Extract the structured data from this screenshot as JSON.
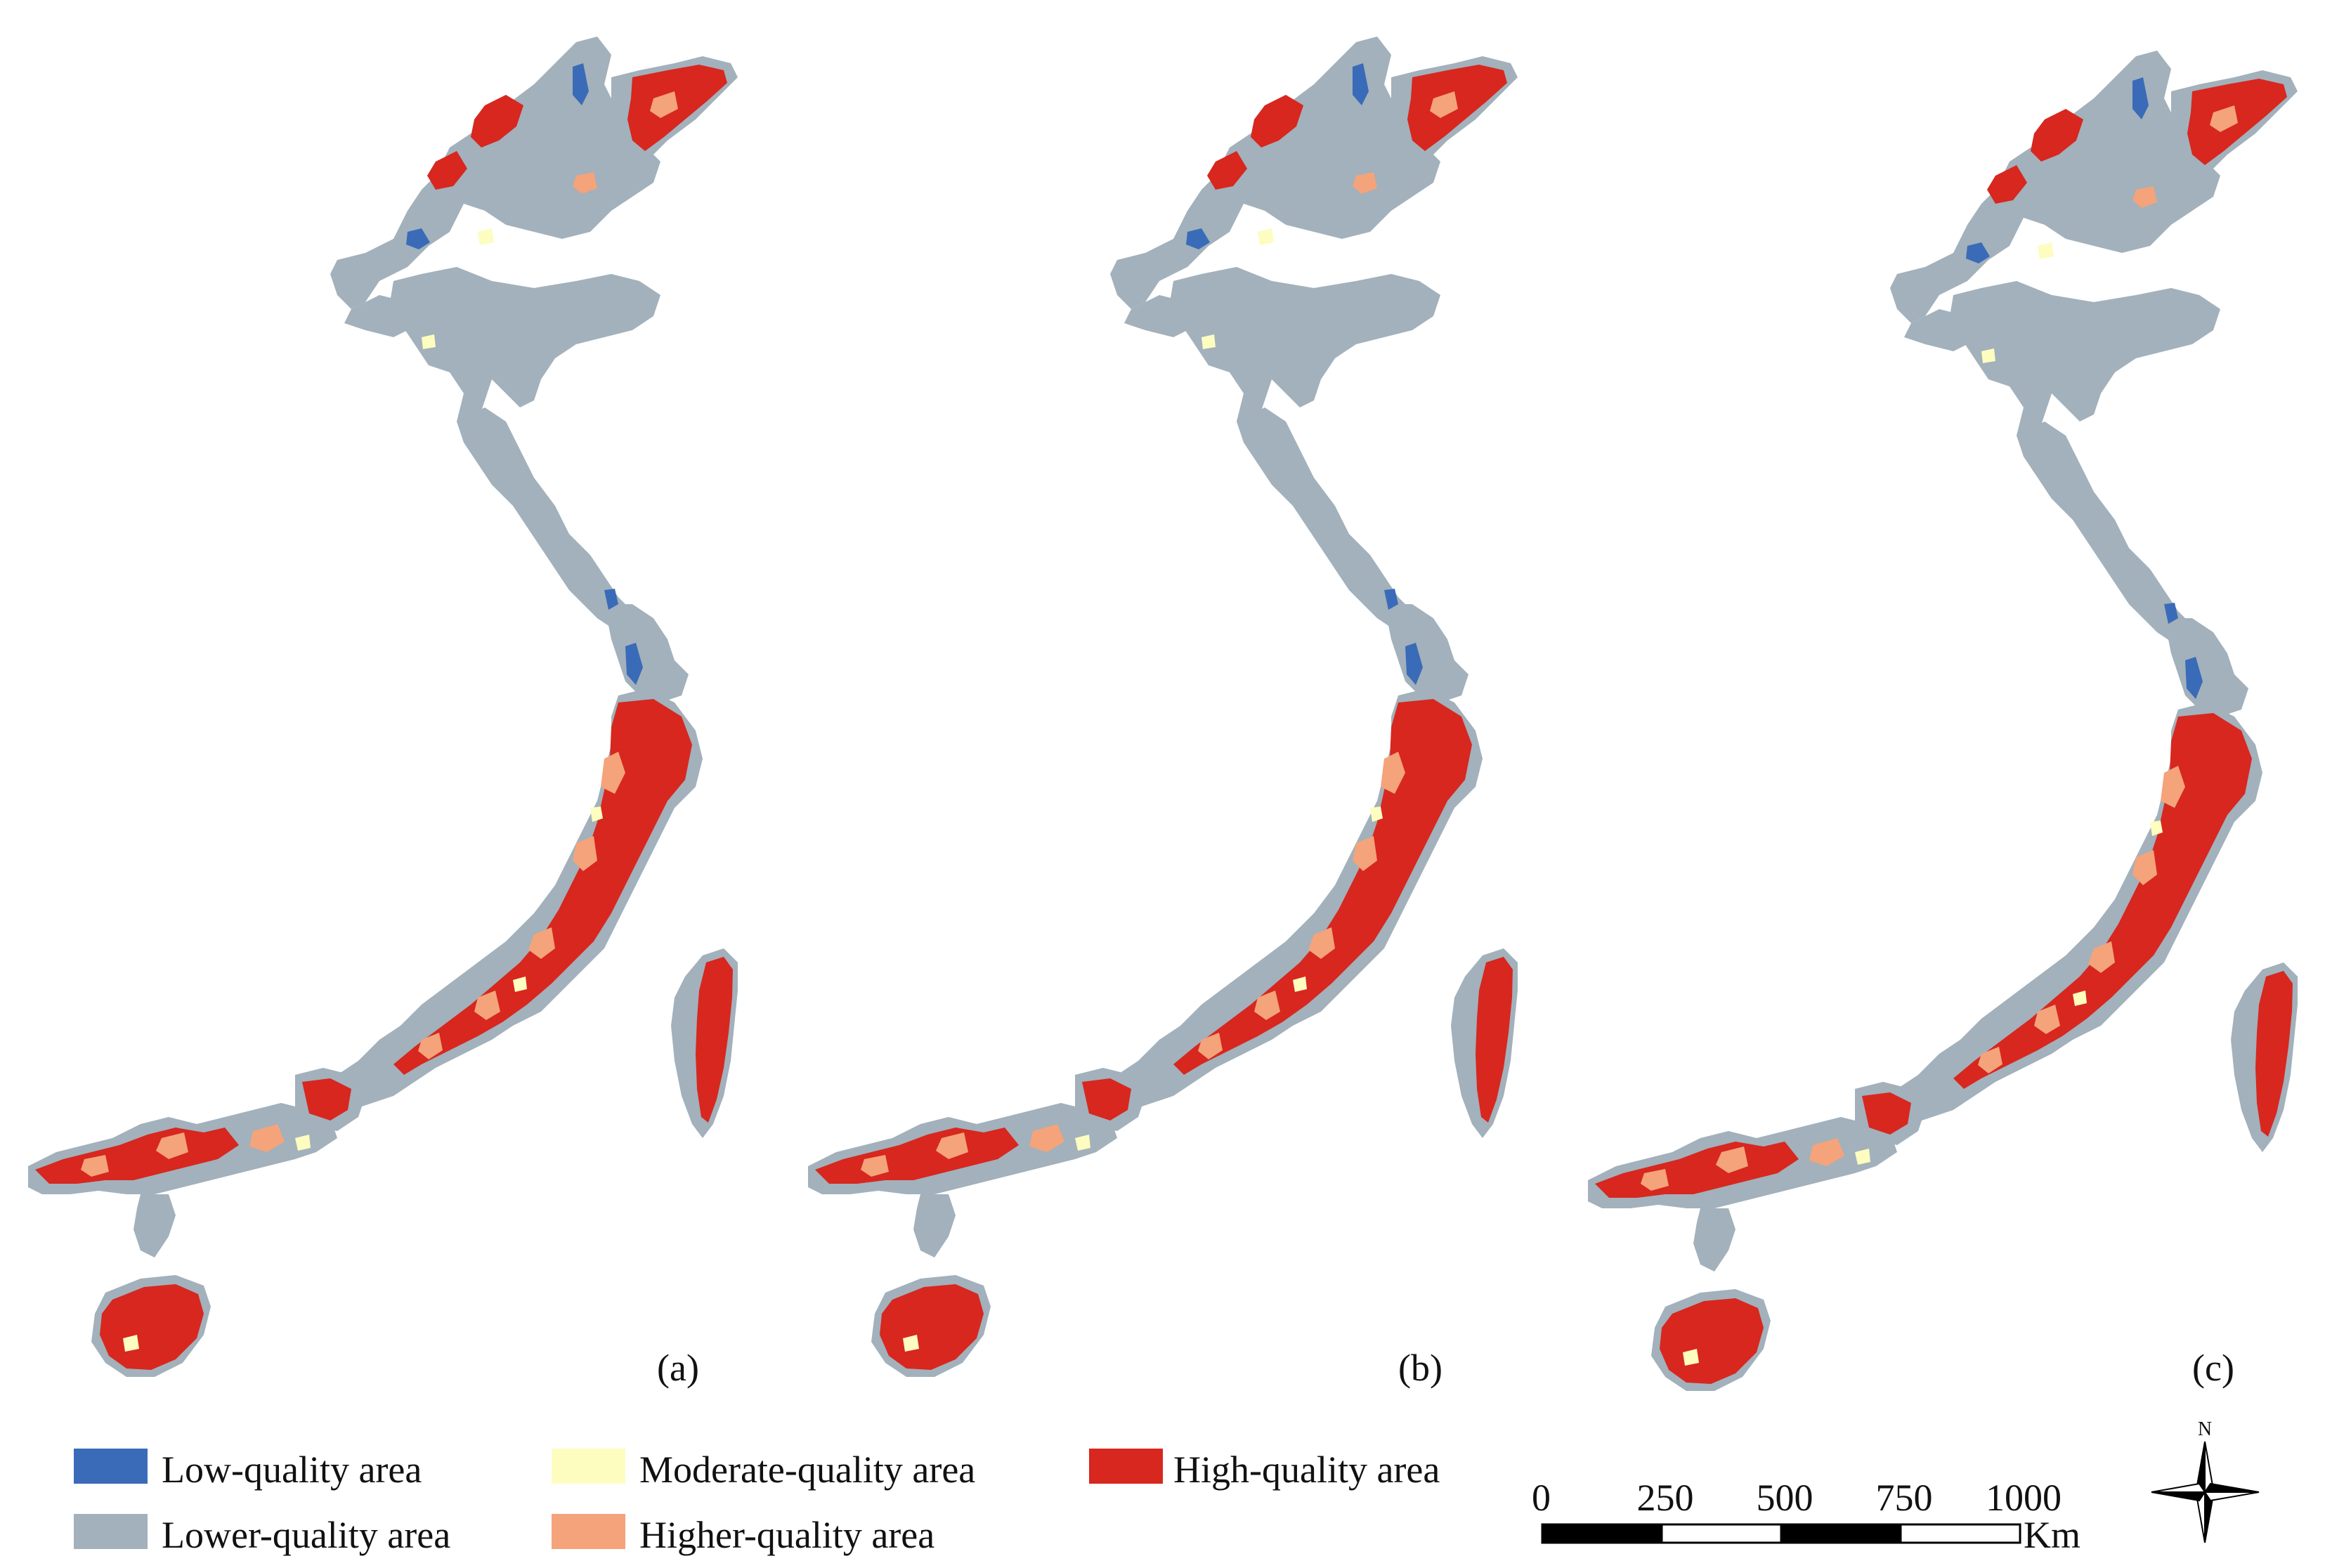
{
  "panels": [
    {
      "label": "(a)"
    },
    {
      "label": "(b)"
    },
    {
      "label": "(c)"
    }
  ],
  "legend": {
    "items": [
      {
        "label": "Low-quality area",
        "color": "#3a6bb8"
      },
      {
        "label": "Lower-quality area",
        "color": "#a2b1bb"
      },
      {
        "label": "Moderate-quality area",
        "color": "#fdfdc0"
      },
      {
        "label": "Higher-quality area",
        "color": "#f4a37a"
      },
      {
        "label": "High-quality area",
        "color": "#d7271f"
      }
    ]
  },
  "scale_bar": {
    "ticks": [
      "0",
      "250",
      "500",
      "750",
      "1000"
    ],
    "unit": "Km"
  },
  "north_arrow": {
    "label": "N"
  },
  "colors": {
    "low": "#3a6bb8",
    "lower": "#a2b1bb",
    "moderate": "#fdfdc0",
    "higher": "#f4a37a",
    "high": "#d7271f"
  }
}
